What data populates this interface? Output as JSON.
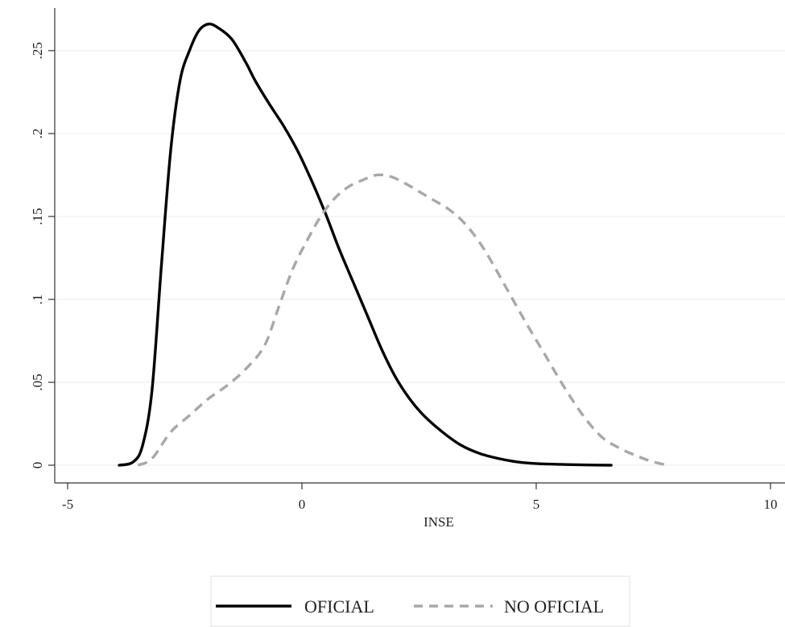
{
  "chart_data": {
    "type": "line",
    "title": "",
    "xlabel": "INSE",
    "ylabel": "",
    "xlim": [
      -5,
      10
    ],
    "ylim": [
      0,
      0.265
    ],
    "xticks": [
      -5,
      0,
      5,
      10
    ],
    "xtick_labels": [
      "-5",
      "0",
      "5",
      "10"
    ],
    "yticks": [
      0,
      0.05,
      0.1,
      0.15,
      0.2,
      0.25
    ],
    "ytick_labels": [
      "0",
      ".05",
      ".1",
      ".15",
      ".2",
      ".25"
    ],
    "grid": true,
    "legend_position": "bottom",
    "series": [
      {
        "name": "OFICIAL",
        "color": "#000000",
        "style": "solid",
        "x": [
          -3.9,
          -3.6,
          -3.4,
          -3.2,
          -3.0,
          -2.8,
          -2.6,
          -2.4,
          -2.2,
          -2.0,
          -1.8,
          -1.5,
          -1.2,
          -1.0,
          -0.7,
          -0.4,
          -0.1,
          0.2,
          0.5,
          0.8,
          1.1,
          1.4,
          1.7,
          2.0,
          2.3,
          2.6,
          3.0,
          3.4,
          3.8,
          4.2,
          4.6,
          5.0,
          5.5,
          6.0,
          6.6
        ],
        "y": [
          0.0,
          0.002,
          0.012,
          0.045,
          0.12,
          0.19,
          0.232,
          0.25,
          0.262,
          0.266,
          0.264,
          0.257,
          0.243,
          0.232,
          0.218,
          0.205,
          0.19,
          0.172,
          0.152,
          0.13,
          0.11,
          0.09,
          0.07,
          0.053,
          0.04,
          0.03,
          0.02,
          0.012,
          0.007,
          0.004,
          0.002,
          0.001,
          0.0005,
          0.0002,
          0.0
        ]
      },
      {
        "name": "NO OFICIAL",
        "color": "#a8a8a8",
        "style": "dashed",
        "x": [
          -3.5,
          -3.2,
          -2.8,
          -2.4,
          -2.0,
          -1.6,
          -1.2,
          -0.8,
          -0.5,
          -0.2,
          0.1,
          0.4,
          0.7,
          1.0,
          1.3,
          1.6,
          1.9,
          2.2,
          2.5,
          2.8,
          3.1,
          3.4,
          3.7,
          4.0,
          4.4,
          4.8,
          5.2,
          5.6,
          6.0,
          6.4,
          6.8,
          7.2,
          7.5,
          7.8
        ],
        "y": [
          0.0,
          0.004,
          0.02,
          0.03,
          0.04,
          0.048,
          0.058,
          0.072,
          0.095,
          0.118,
          0.135,
          0.15,
          0.161,
          0.168,
          0.172,
          0.175,
          0.174,
          0.17,
          0.165,
          0.16,
          0.155,
          0.148,
          0.138,
          0.125,
          0.105,
          0.085,
          0.066,
          0.047,
          0.03,
          0.017,
          0.01,
          0.005,
          0.002,
          0.0
        ]
      }
    ]
  }
}
